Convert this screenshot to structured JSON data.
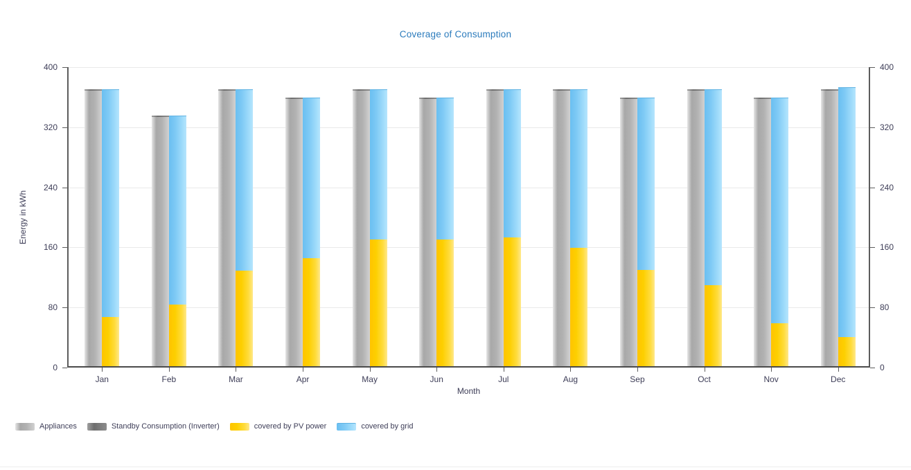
{
  "page": {
    "background": "#ffffff",
    "divider_color": "#ededed"
  },
  "chart_data": {
    "type": "bar",
    "title": "Coverage of Consumption",
    "title_color": "#2b7bbc",
    "xlabel": "Month",
    "ylabel": "Energy in kWh",
    "ylim": [
      0,
      400
    ],
    "yticks": [
      0,
      80,
      160,
      240,
      320,
      400
    ],
    "grid": true,
    "dual_y_axis": true,
    "legend_position": "bottom-left",
    "categories": [
      "Jan",
      "Feb",
      "Mar",
      "Apr",
      "May",
      "Jun",
      "Jul",
      "Aug",
      "Sep",
      "Oct",
      "Nov",
      "Dec"
    ],
    "series": [
      {
        "name": "Appliances",
        "key": "appliances",
        "stack": "consumption",
        "color": "#b8b8b8",
        "values": [
          367,
          332,
          367,
          356,
          367,
          356,
          367,
          367,
          356,
          367,
          356,
          367
        ]
      },
      {
        "name": "Standby Consumption (Inverter)",
        "key": "standby",
        "stack": "consumption",
        "color": "#7d7d7d",
        "values": [
          2,
          2,
          2,
          2,
          2,
          2,
          2,
          2,
          2,
          2,
          2,
          2
        ]
      },
      {
        "name": "covered by PV power",
        "key": "pv",
        "stack": "coverage",
        "color": "#ffd200",
        "values": [
          65,
          82,
          127,
          144,
          169,
          169,
          171,
          158,
          128,
          108,
          57,
          39
        ]
      },
      {
        "name": "covered by grid",
        "key": "grid",
        "stack": "coverage",
        "color": "#8ed2f8",
        "values": [
          304,
          252,
          242,
          214,
          200,
          189,
          198,
          211,
          230,
          261,
          301,
          332
        ]
      }
    ]
  }
}
